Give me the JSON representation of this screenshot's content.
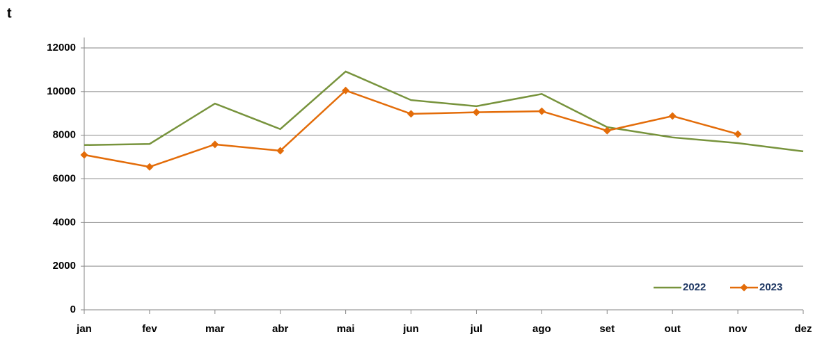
{
  "chart_data": {
    "type": "line",
    "y_label": "t",
    "categories": [
      "jan",
      "fev",
      "mar",
      "abr",
      "mai",
      "jun",
      "jul",
      "ago",
      "set",
      "out",
      "nov",
      "dez"
    ],
    "series": [
      {
        "name": "2022",
        "color": "#77933c",
        "marker": "none",
        "values": [
          7550,
          7600,
          9450,
          8280,
          10920,
          9610,
          9330,
          9890,
          8370,
          7900,
          7640,
          7260
        ]
      },
      {
        "name": "2023",
        "color": "#e36c09",
        "marker": "diamond",
        "values": [
          7100,
          6550,
          7580,
          7290,
          10050,
          8980,
          9050,
          9100,
          8210,
          8880,
          8050,
          null
        ]
      }
    ],
    "ylim": [
      0,
      12000
    ],
    "yticks": [
      0,
      2000,
      4000,
      6000,
      8000,
      10000,
      12000
    ],
    "grid": true,
    "legend": "bottom-right"
  }
}
